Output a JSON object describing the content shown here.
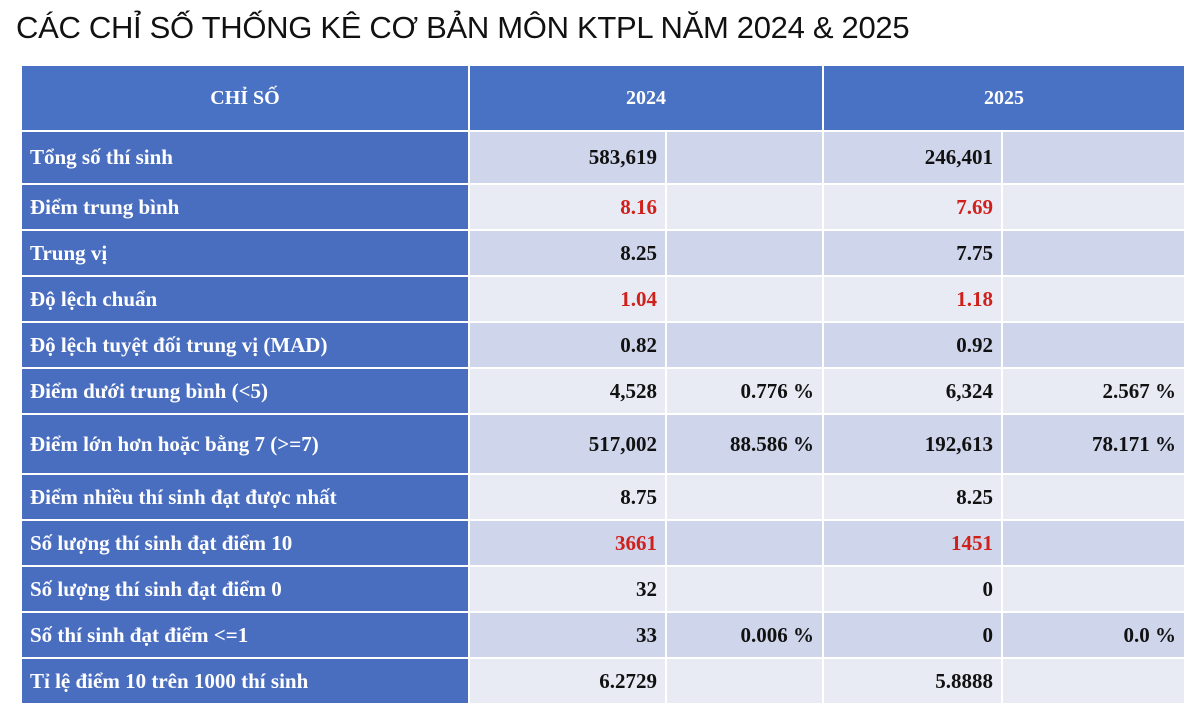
{
  "title": "CÁC CHỈ SỐ THỐNG KÊ CƠ BẢN MÔN KTPL NĂM 2024 & 2025",
  "table": {
    "header": [
      "CHỈ SỐ",
      "2024",
      "2025"
    ],
    "rows": [
      {
        "label": "Tổng số thí sinh",
        "cells": [
          "583,619",
          null,
          "246,401",
          null
        ]
      },
      {
        "label": "Điểm trung bình",
        "cells": [
          "8.16",
          null,
          "7.69",
          null
        ]
      },
      {
        "label": "Trung vị",
        "cells": [
          "8.25",
          null,
          "7.75",
          null
        ]
      },
      {
        "label": "Độ lệch chuẩn",
        "cells": [
          "1.04",
          null,
          "1.18",
          null
        ]
      },
      {
        "label": "Độ lệch tuyệt đối trung vị (MAD)",
        "cells": [
          "0.82",
          null,
          "0.92",
          null
        ]
      },
      {
        "label": "Điểm dưới trung bình (<5)",
        "cells": [
          "4,528",
          "0.776 %",
          "6,324",
          "2.567 %"
        ]
      },
      {
        "label": "Điểm lớn hơn hoặc bằng 7 (>=7)",
        "cells": [
          "517,002",
          "88.586 %",
          "192,613",
          "78.171 %"
        ]
      },
      {
        "label": "Điểm nhiều thí sinh đạt được nhất",
        "cells": [
          "8.75",
          null,
          "8.25",
          null
        ]
      },
      {
        "label": "Số lượng thí sinh đạt điểm 10",
        "cells": [
          "3661",
          null,
          "1451",
          null
        ]
      },
      {
        "label": "Số lượng thí sinh đạt điểm 0",
        "cells": [
          "32",
          null,
          "0",
          null
        ]
      },
      {
        "label": "Số thí sinh đạt điểm <=1",
        "cells": [
          "33",
          "0.006 %",
          "0",
          "0.0 %"
        ]
      },
      {
        "label": "Tỉ lệ điểm 10 trên 1000 thí sinh",
        "cells": [
          "6.2729",
          null,
          "5.8888",
          null
        ]
      }
    ]
  }
}
